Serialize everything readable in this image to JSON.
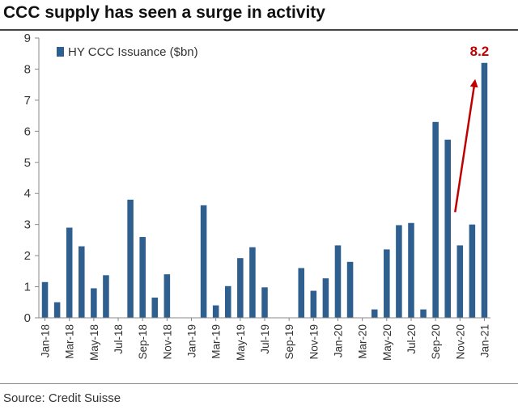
{
  "header": {
    "title": "CCC supply has seen a surge in activity"
  },
  "footer": {
    "source": "Source: Credit Suisse"
  },
  "colors": {
    "bar": "#2e5f8f",
    "annotation": "#c00000",
    "axis": "#888888",
    "text": "#333333"
  },
  "chart_data": {
    "type": "bar",
    "title": "CCC supply has seen a surge in activity",
    "xlabel": "",
    "ylabel": "",
    "ylim": [
      0,
      9
    ],
    "yticks": [
      0,
      1,
      2,
      3,
      4,
      5,
      6,
      7,
      8,
      9
    ],
    "grid": false,
    "legend_position": "top-left",
    "categories": [
      "Jan-18",
      "Feb-18",
      "Mar-18",
      "Apr-18",
      "May-18",
      "Jun-18",
      "Jul-18",
      "Aug-18",
      "Sep-18",
      "Oct-18",
      "Nov-18",
      "Dec-18",
      "Jan-19",
      "Feb-19",
      "Mar-19",
      "Apr-19",
      "May-19",
      "Jun-19",
      "Jul-19",
      "Aug-19",
      "Sep-19",
      "Oct-19",
      "Nov-19",
      "Dec-19",
      "Jan-20",
      "Feb-20",
      "Mar-20",
      "Apr-20",
      "May-20",
      "Jun-20",
      "Jul-20",
      "Aug-20",
      "Sep-20",
      "Oct-20",
      "Nov-20",
      "Dec-20",
      "Jan-21"
    ],
    "tick_labels": [
      "Jan-18",
      "Mar-18",
      "May-18",
      "Jul-18",
      "Sep-18",
      "Nov-18",
      "Jan-19",
      "Mar-19",
      "May-19",
      "Jul-19",
      "Sep-19",
      "Nov-19",
      "Jan-20",
      "Mar-20",
      "May-20",
      "Jul-20",
      "Sep-20",
      "Nov-20",
      "Jan-21"
    ],
    "series": [
      {
        "name": "HY CCC Issuance ($bn)",
        "values": [
          1.15,
          0.5,
          2.9,
          2.3,
          0.95,
          1.37,
          0,
          3.8,
          2.6,
          0.65,
          1.4,
          0,
          0,
          3.62,
          0.4,
          1.02,
          1.92,
          2.27,
          0.98,
          0,
          0,
          1.6,
          0.87,
          1.27,
          2.33,
          1.8,
          0,
          0.27,
          2.2,
          2.98,
          3.05,
          0.27,
          6.3,
          5.73,
          2.33,
          3.0,
          8.2
        ]
      }
    ],
    "annotations": [
      {
        "text": "8.2",
        "category": "Jan-21",
        "value": 8.2
      }
    ]
  }
}
